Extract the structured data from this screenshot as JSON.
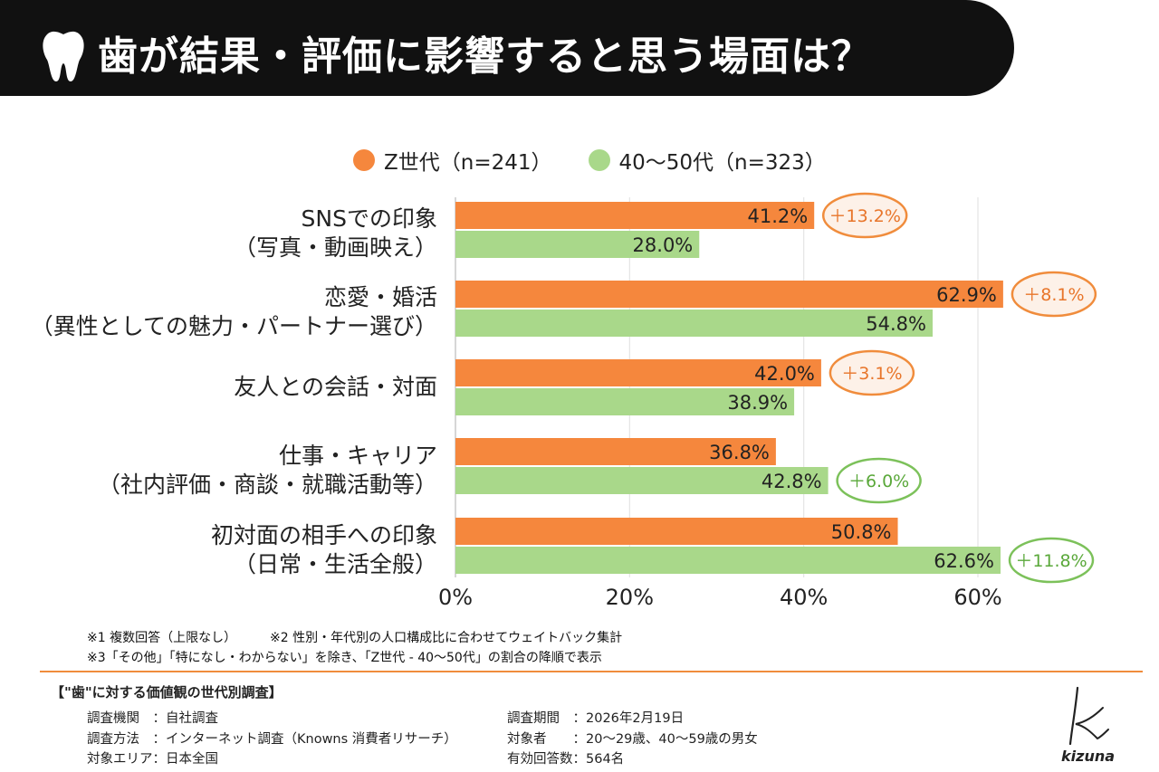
{
  "title": "歯が結果・評価に影響すると思う場面は？",
  "legend": [
    {
      "label": "Z世代（n=241）",
      "color": "#f5873d"
    },
    {
      "label": "40〜50代（n=323）",
      "color": "#a9d88a"
    }
  ],
  "colors": {
    "orange": "#f5873d",
    "green": "#a9d88a",
    "orange_badge_border": "#f08c3c",
    "green_badge_border": "#7cc15a",
    "orange_badge_text": "#e8752a",
    "green_badge_text": "#5aa83a"
  },
  "categories": [
    {
      "line1": "SNSでの印象",
      "line2": "（写真・動画映え）"
    },
    {
      "line1": "恋愛・婚活",
      "line2": "（異性としての魅力・パートナー選び）"
    },
    {
      "line1": "友人との会話・対面",
      "line2": ""
    },
    {
      "line1": "仕事・キャリア",
      "line2": "（社内評価・商談・就職活動等）"
    },
    {
      "line1": "初対面の相手への印象",
      "line2": "（日常・生活全般）"
    }
  ],
  "chart_data": {
    "type": "bar",
    "orientation": "horizontal",
    "categories": [
      "SNSでの印象（写真・動画映え）",
      "恋愛・婚活（異性としての魅力・パートナー選び）",
      "友人との会話・対面",
      "仕事・キャリア（社内評価・商談・就職活動等）",
      "初対面の相手への印象（日常・生活全般）"
    ],
    "series": [
      {
        "name": "Z世代（n=241）",
        "values": [
          41.2,
          62.9,
          42.0,
          36.8,
          50.8
        ],
        "labels": [
          "41.2%",
          "62.9%",
          "42.0%",
          "36.8%",
          "50.8%"
        ]
      },
      {
        "name": "40〜50代（n=323）",
        "values": [
          28.0,
          54.8,
          38.9,
          42.8,
          62.6
        ],
        "labels": [
          "28.0%",
          "54.8%",
          "38.9%",
          "42.8%",
          "62.6%"
        ]
      }
    ],
    "differences": [
      {
        "text": "＋13.2%",
        "series": "Z世代（n=241）"
      },
      {
        "text": "＋8.1%",
        "series": "Z世代（n=241）"
      },
      {
        "text": "＋3.1%",
        "series": "Z世代（n=241）"
      },
      {
        "text": "＋6.0%",
        "series": "40〜50代（n=323）"
      },
      {
        "text": "＋11.8%",
        "series": "40〜50代（n=323）"
      }
    ],
    "xlim": [
      0,
      60
    ],
    "xticks": [
      "0%",
      "20%",
      "40%",
      "60%"
    ],
    "grid": true,
    "legend_position": "top"
  },
  "notes": {
    "line1a": "※1 複数回答（上限なし）",
    "line1b": "※2 性別・年代別の人口構成比に合わせてウェイトバック集計",
    "line2": "※3「その他」「特になし・わからない」を除き、「Z世代 - 40〜50代」の割合の降順で表示"
  },
  "survey": {
    "title": "【\"歯\"に対する価値観の世代別調査】",
    "left": [
      {
        "key": "調査機関　：",
        "value": "自社調査"
      },
      {
        "key": "調査方法　：",
        "value": "インターネット調査（Knowns 消費者リサーチ）"
      },
      {
        "key": "対象エリア：",
        "value": "日本全国"
      }
    ],
    "right": [
      {
        "key": "調査期間　：",
        "value": "2026年2月19日"
      },
      {
        "key": "対象者　　：",
        "value": "20〜29歳、40〜59歳の男女"
      },
      {
        "key": "有効回答数：",
        "value": "564名"
      }
    ]
  },
  "logo": {
    "text": "kizuna"
  }
}
